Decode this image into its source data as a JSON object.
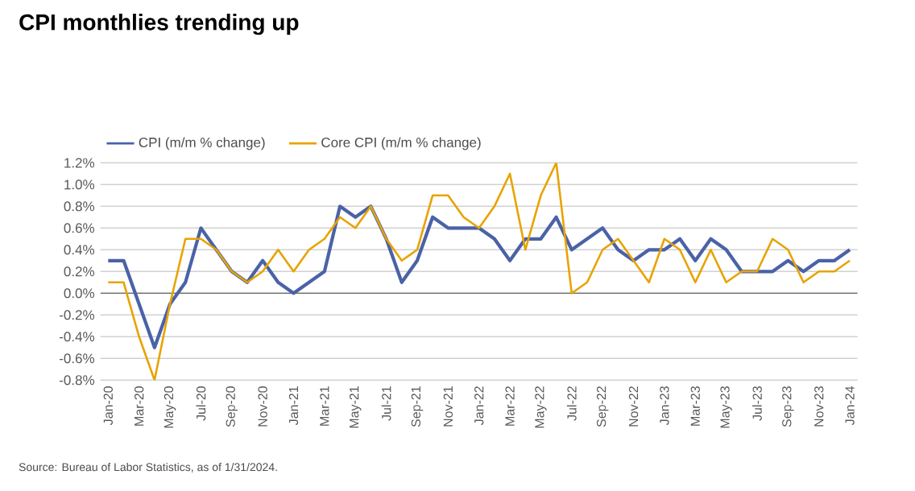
{
  "chart_data": {
    "type": "line",
    "title": "CPI monthlies trending up",
    "categories": [
      "Jan-20",
      null,
      "Mar-20",
      null,
      "May-20",
      null,
      "Jul-20",
      null,
      "Sep-20",
      null,
      "Nov-20",
      null,
      "Jan-21",
      null,
      "Mar-21",
      null,
      "May-21",
      null,
      "Jul-21",
      null,
      "Sep-21",
      null,
      "Nov-21",
      null,
      "Jan-22",
      null,
      "Mar-22",
      null,
      "May-22",
      null,
      "Jul-22",
      null,
      "Sep-22",
      null,
      "Nov-22",
      null,
      "Jan-23",
      null,
      "Mar-23",
      null,
      "May-23",
      null,
      "Jul-23",
      null,
      "Sep-23",
      null,
      "Nov-23",
      null,
      "Jan-24"
    ],
    "series": [
      {
        "name": "CPI (m/m % change)",
        "color": "#4a62a6",
        "values": [
          0.3,
          0.3,
          -0.1,
          -0.5,
          -0.1,
          0.1,
          0.6,
          0.4,
          0.2,
          0.1,
          0.3,
          0.1,
          0.0,
          0.1,
          0.2,
          0.8,
          0.7,
          0.8,
          0.5,
          0.1,
          0.3,
          0.7,
          0.6,
          0.6,
          0.6,
          0.5,
          0.3,
          0.5,
          0.5,
          0.7,
          0.4,
          0.5,
          0.6,
          0.4,
          0.3,
          0.4,
          0.4,
          0.5,
          0.3,
          0.5,
          0.4,
          0.2,
          0.2,
          0.2,
          0.3,
          0.2,
          0.3,
          0.3,
          0.4
        ]
      },
      {
        "name": "Core CPI (m/m % change)",
        "color": "#e8a300",
        "values": [
          0.1,
          0.1,
          -0.4,
          -0.8,
          -0.1,
          0.5,
          0.5,
          0.4,
          0.2,
          0.1,
          0.2,
          0.4,
          0.2,
          0.4,
          0.5,
          0.7,
          0.6,
          0.8,
          0.5,
          0.3,
          0.4,
          0.9,
          0.9,
          0.7,
          0.6,
          0.8,
          1.1,
          0.4,
          0.9,
          1.2,
          0.0,
          0.1,
          0.4,
          0.5,
          0.3,
          0.1,
          0.5,
          0.4,
          0.1,
          0.4,
          0.1,
          0.2,
          0.2,
          0.5,
          0.4,
          0.1,
          0.2,
          0.2,
          0.3
        ]
      }
    ],
    "ylim": [
      -0.8,
      1.2
    ],
    "yticks": [
      {
        "value": -0.8,
        "label": "-0.8%"
      },
      {
        "value": -0.6,
        "label": "-0.6%"
      },
      {
        "value": -0.4,
        "label": "-0.4%"
      },
      {
        "value": -0.2,
        "label": "-0.2%"
      },
      {
        "value": 0.0,
        "label": "0.0%"
      },
      {
        "value": 0.2,
        "label": "0.2%"
      },
      {
        "value": 0.4,
        "label": "0.4%"
      },
      {
        "value": 0.6,
        "label": "0.6%"
      },
      {
        "value": 0.8,
        "label": "0.8%"
      },
      {
        "value": 1.0,
        "label": "1.0%"
      },
      {
        "value": 1.2,
        "label": "1.2%"
      }
    ],
    "grid": "y",
    "legend": "top left",
    "marker": "none",
    "line_style": "solid",
    "annotations": [
      "Source: Bureau of Labor Statistics, as of 1/31/2024."
    ]
  }
}
